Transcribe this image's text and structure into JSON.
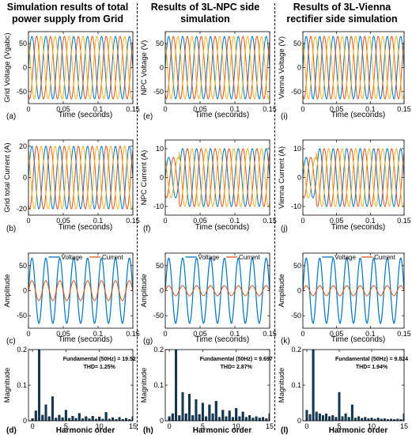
{
  "columns": [
    {
      "title": "Simulation results of  total power supply from Grid"
    },
    {
      "title": "Results of  3L-NPC side simulation"
    },
    {
      "title": "Results of  3L-Vienna rectifier side simulation"
    }
  ],
  "colors": {
    "phase_a": "#0072BD",
    "phase_b": "#D95319",
    "phase_c": "#EDB120",
    "bar": "#0E3A5A"
  },
  "chart_data": [
    {
      "id": "a",
      "type": "line",
      "panel_label": "(a)",
      "xlabel": "Time (seconds)",
      "ylabel": "Grid Voltage (Vgabc)",
      "xlim": [
        0,
        0.15
      ],
      "ylim": [
        -75,
        75
      ],
      "xticks": [
        0,
        0.05,
        0.1,
        0.15
      ],
      "xtick_labels": [
        "0",
        "0.05",
        "0.1",
        "0.15"
      ],
      "yticks": [
        -50,
        0,
        50
      ],
      "ytick_labels": [
        "-50",
        "0",
        "50"
      ],
      "signal": {
        "kind": "three_phase",
        "amplitude": 65,
        "freq_hz": 50
      },
      "series": []
    },
    {
      "id": "e",
      "type": "line",
      "panel_label": "(e)",
      "xlabel": "Time (seconds)",
      "ylabel": "NPC Voltage (V)",
      "xlim": [
        0,
        0.15
      ],
      "ylim": [
        -75,
        75
      ],
      "xticks": [
        0,
        0.05,
        0.1,
        0.15
      ],
      "xtick_labels": [
        "0",
        "0.05",
        "0.1",
        "0.15"
      ],
      "yticks": [
        -50,
        0,
        50
      ],
      "ytick_labels": [
        "-50",
        "0",
        "50"
      ],
      "signal": {
        "kind": "three_phase",
        "amplitude": 65,
        "freq_hz": 50
      },
      "series": []
    },
    {
      "id": "i",
      "type": "line",
      "panel_label": "(i)",
      "xlabel": "Time (seconds)",
      "ylabel": "Vienna Voltage (V)",
      "xlim": [
        0,
        0.15
      ],
      "ylim": [
        -75,
        75
      ],
      "xticks": [
        0,
        0.05,
        0.1,
        0.15
      ],
      "xtick_labels": [
        "0",
        "0.05",
        "0.1",
        "0.15"
      ],
      "yticks": [
        -50,
        0,
        50
      ],
      "ytick_labels": [
        "-50",
        "0",
        "50"
      ],
      "signal": {
        "kind": "three_phase",
        "amplitude": 65,
        "freq_hz": 50
      },
      "series": []
    },
    {
      "id": "b",
      "type": "line",
      "panel_label": "(b)",
      "xlabel": "Time (seconds)",
      "ylabel": "Grid total Current (A)",
      "xlim": [
        0,
        0.15
      ],
      "ylim": [
        -24,
        24
      ],
      "xticks": [
        0,
        0.05,
        0.1,
        0.15
      ],
      "xtick_labels": [
        "0",
        "0.05",
        "0.1",
        "0.15"
      ],
      "yticks": [
        -20,
        0,
        20
      ],
      "ytick_labels": [
        "-20",
        "0",
        "20"
      ],
      "signal": {
        "kind": "three_phase",
        "amplitude": 20,
        "freq_hz": 50
      },
      "series": []
    },
    {
      "id": "f",
      "type": "line",
      "panel_label": "(f)",
      "xlabel": "Time (seconds)",
      "ylabel": "NPC Current (A)",
      "xlim": [
        0,
        0.15
      ],
      "ylim": [
        -13,
        13
      ],
      "xticks": [
        0,
        0.05,
        0.1,
        0.15
      ],
      "xtick_labels": [
        "0",
        "0.05",
        "0.1",
        "0.15"
      ],
      "yticks": [
        -10,
        0,
        10
      ],
      "ytick_labels": [
        "-10",
        "0",
        "10"
      ],
      "signal": {
        "kind": "three_phase",
        "amplitude": 10,
        "freq_hz": 50,
        "transient_end": 0.02,
        "transient_amplitude": 7
      },
      "series": []
    },
    {
      "id": "j",
      "type": "line",
      "panel_label": "(j)",
      "xlabel": "Time (seconds)",
      "ylabel": "Vienna Current (A)",
      "xlim": [
        0,
        0.15
      ],
      "ylim": [
        -13,
        13
      ],
      "xticks": [
        0,
        0.05,
        0.1,
        0.15
      ],
      "xtick_labels": [
        "0",
        "0.05",
        "0.1",
        "0.15"
      ],
      "yticks": [
        -10,
        0,
        10
      ],
      "ytick_labels": [
        "-10",
        "0",
        "10"
      ],
      "signal": {
        "kind": "three_phase",
        "amplitude": 10,
        "freq_hz": 50,
        "transient_end": 0.02,
        "transient_amplitude": 7
      },
      "series": []
    },
    {
      "id": "c",
      "type": "line",
      "panel_label": "(c)",
      "xlabel": "Time (seconds)",
      "ylabel": "Amplitude",
      "xlim": [
        0,
        0.15
      ],
      "ylim": [
        -75,
        75
      ],
      "xticks": [
        0,
        0.05,
        0.1,
        0.15
      ],
      "xtick_labels": [
        "0",
        "0.05",
        "0.1",
        "0.15"
      ],
      "yticks": [
        -50,
        0,
        50
      ],
      "ytick_labels": [
        "-50",
        "0",
        "50"
      ],
      "legend": {
        "placement": "top",
        "entries": [
          "Voltage",
          "Current"
        ]
      },
      "signal": {
        "kind": "voltage_current",
        "freq_hz": 50,
        "voltage_amplitude": 65,
        "current_amplitude": 20
      },
      "series": [
        {
          "name": "Voltage"
        },
        {
          "name": "Current"
        }
      ]
    },
    {
      "id": "g",
      "type": "line",
      "panel_label": "(g)",
      "xlabel": "Time (seconds)",
      "ylabel": "Amplitude",
      "xlim": [
        0,
        0.15
      ],
      "ylim": [
        -75,
        75
      ],
      "xticks": [
        0,
        0.05,
        0.1,
        0.15
      ],
      "xtick_labels": [
        "0",
        "0.05",
        "0.1",
        "0.15"
      ],
      "yticks": [
        -50,
        0,
        50
      ],
      "ytick_labels": [
        "-50",
        "0",
        "50"
      ],
      "legend": {
        "placement": "top",
        "entries": [
          "Voltage",
          "Current"
        ]
      },
      "signal": {
        "kind": "voltage_current",
        "freq_hz": 50,
        "voltage_amplitude": 65,
        "current_amplitude": 10
      },
      "series": [
        {
          "name": "Voltage"
        },
        {
          "name": "Current"
        }
      ]
    },
    {
      "id": "k",
      "type": "line",
      "panel_label": "(k)",
      "xlabel": "Time (seconds)",
      "ylabel": "Amplitude",
      "xlim": [
        0,
        0.15
      ],
      "ylim": [
        -75,
        75
      ],
      "xticks": [
        0,
        0.05,
        0.1,
        0.15
      ],
      "xtick_labels": [
        "0",
        "0.05",
        "0.1",
        "0.15"
      ],
      "yticks": [
        -50,
        0,
        50
      ],
      "ytick_labels": [
        "-50",
        "0",
        "50"
      ],
      "legend": {
        "placement": "top",
        "entries": [
          "Voltage",
          "Current"
        ]
      },
      "signal": {
        "kind": "voltage_current",
        "freq_hz": 50,
        "voltage_amplitude": 65,
        "current_amplitude": 10
      },
      "series": [
        {
          "name": "Voltage"
        },
        {
          "name": "Current"
        }
      ]
    },
    {
      "id": "d",
      "type": "bar",
      "panel_label": "(d)",
      "xlabel": "Harmonic order",
      "ylabel": "Magnitude",
      "xlim": [
        -0.6,
        15
      ],
      "ylim": [
        0,
        0.2
      ],
      "xticks": [
        0,
        5,
        10,
        15
      ],
      "xtick_labels": [
        "0",
        "5",
        "10",
        "15"
      ],
      "yticks": [
        0,
        0.1,
        0.2
      ],
      "ytick_labels": [
        "0",
        "0.1",
        "0.2"
      ],
      "annotation": [
        "Fundamental (50Hz) = 19.52",
        "THD= 1.25%"
      ],
      "x": [
        0,
        0.5,
        1,
        1.5,
        2,
        2.5,
        3,
        3.5,
        4,
        4.5,
        5,
        5.5,
        6,
        6.5,
        7,
        7.5,
        8,
        8.5,
        9,
        9.5,
        10,
        10.5,
        11,
        11.5,
        12,
        12.5,
        13,
        13.5,
        14,
        14.5,
        15
      ],
      "values": [
        0.006,
        0.028,
        0.2,
        0.016,
        0.045,
        0.012,
        0.068,
        0.008,
        0.016,
        0.009,
        0.03,
        0.007,
        0.013,
        0.007,
        0.021,
        0.006,
        0.012,
        0.006,
        0.013,
        0.005,
        0.011,
        0.005,
        0.024,
        0.005,
        0.009,
        0.004,
        0.01,
        0.004,
        0.007,
        0.004,
        0.012
      ]
    },
    {
      "id": "h",
      "type": "bar",
      "panel_label": "(h)",
      "xlabel": "Harmonic order",
      "ylabel": "Magnitude",
      "xlim": [
        -0.6,
        15
      ],
      "ylim": [
        0,
        0.2
      ],
      "xticks": [
        0,
        5,
        10,
        15
      ],
      "xtick_labels": [
        "0",
        "5",
        "10",
        "15"
      ],
      "yticks": [
        0,
        0.1,
        0.2
      ],
      "ytick_labels": [
        "0",
        "0.1",
        "0.2"
      ],
      "annotation": [
        "Fundamental (50Hz) = 9.697",
        "THD= 2.87%"
      ],
      "x": [
        0,
        0.5,
        1,
        1.5,
        2,
        2.5,
        3,
        3.5,
        4,
        4.5,
        5,
        5.5,
        6,
        6.5,
        7,
        7.5,
        8,
        8.5,
        9,
        9.5,
        10,
        10.5,
        11,
        11.5,
        12,
        12.5,
        13,
        13.5,
        14,
        14.5,
        15
      ],
      "values": [
        0.012,
        0.02,
        0.2,
        0.015,
        0.08,
        0.02,
        0.075,
        0.015,
        0.06,
        0.018,
        0.05,
        0.012,
        0.045,
        0.02,
        0.055,
        0.01,
        0.03,
        0.012,
        0.028,
        0.01,
        0.035,
        0.012,
        0.025,
        0.01,
        0.015,
        0.008,
        0.012,
        0.008,
        0.01,
        0.006,
        0.02
      ]
    },
    {
      "id": "l",
      "type": "bar",
      "panel_label": "(l)",
      "xlabel": "Harmonic order",
      "ylabel": "Magnitude",
      "xlim": [
        -0.6,
        15
      ],
      "ylim": [
        0,
        0.2
      ],
      "xticks": [
        0,
        5,
        10,
        15
      ],
      "xtick_labels": [
        "0",
        "5",
        "10",
        "15"
      ],
      "yticks": [
        0,
        0.1,
        0.2
      ],
      "ytick_labels": [
        "0",
        "0.1",
        "0.2"
      ],
      "annotation": [
        "Fundamental (50Hz) = 9.824",
        "THD= 1.94%"
      ],
      "x": [
        0,
        0.5,
        1,
        1.5,
        2,
        2.5,
        3,
        3.5,
        4,
        4.5,
        5,
        5.5,
        6,
        6.5,
        7,
        7.5,
        8,
        8.5,
        9,
        9.5,
        10,
        10.5,
        11,
        11.5,
        12,
        12.5,
        13,
        13.5,
        14,
        14.5,
        15
      ],
      "values": [
        0.03,
        0.018,
        0.2,
        0.025,
        0.02,
        0.015,
        0.02,
        0.012,
        0.015,
        0.01,
        0.08,
        0.012,
        0.02,
        0.01,
        0.045,
        0.008,
        0.012,
        0.007,
        0.01,
        0.006,
        0.008,
        0.005,
        0.008,
        0.005,
        0.006,
        0.004,
        0.005,
        0.004,
        0.005,
        0.004,
        0.02
      ]
    }
  ]
}
